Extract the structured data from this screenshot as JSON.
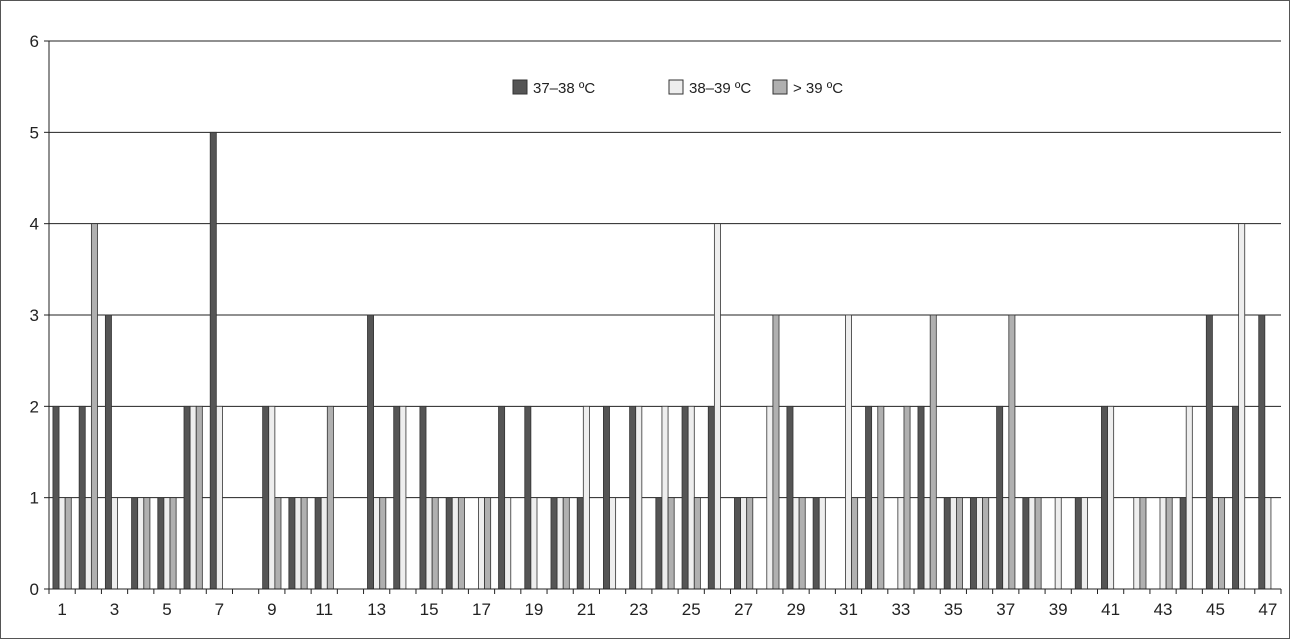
{
  "chart_data": {
    "type": "bar",
    "title": "",
    "xlabel": "",
    "ylabel": "",
    "ylim": [
      0,
      6
    ],
    "yticks": [
      0,
      1,
      2,
      3,
      4,
      5,
      6
    ],
    "grid": true,
    "legend_position": "top-center",
    "x_tick_labels": [
      "1",
      "3",
      "5",
      "7",
      "9",
      "11",
      "13",
      "15",
      "17",
      "19",
      "21",
      "23",
      "25",
      "27",
      "29",
      "31",
      "33",
      "35",
      "37",
      "39",
      "41",
      "43",
      "45",
      "47"
    ],
    "categories": [
      "1",
      "2",
      "3",
      "4",
      "5",
      "6",
      "7",
      "8",
      "9",
      "10",
      "11",
      "12",
      "13",
      "14",
      "15",
      "16",
      "17",
      "18",
      "19",
      "20",
      "21",
      "22",
      "23",
      "24",
      "25",
      "26",
      "27",
      "28",
      "29",
      "30",
      "31",
      "32",
      "33",
      "34",
      "35",
      "36",
      "37",
      "38",
      "39",
      "40",
      "41",
      "42",
      "43",
      "44",
      "45",
      "46",
      "47"
    ],
    "series": [
      {
        "name": "37–38 ºC",
        "color": "#555555",
        "values": [
          2,
          2,
          3,
          1,
          1,
          2,
          5,
          0,
          2,
          1,
          1,
          0,
          3,
          2,
          2,
          1,
          0,
          2,
          2,
          1,
          1,
          2,
          2,
          1,
          2,
          2,
          1,
          0,
          2,
          1,
          0,
          2,
          0,
          2,
          1,
          1,
          2,
          1,
          0,
          1,
          2,
          0,
          0,
          1,
          3,
          2,
          3
        ]
      },
      {
        "name": "38–39 ºC",
        "color": "#eeeeee",
        "values": [
          1,
          1,
          1,
          1,
          1,
          2,
          2,
          0,
          2,
          1,
          1,
          0,
          1,
          2,
          1,
          1,
          1,
          1,
          1,
          1,
          2,
          1,
          2,
          2,
          2,
          4,
          1,
          2,
          1,
          1,
          3,
          1,
          1,
          1,
          1,
          1,
          1,
          1,
          1,
          1,
          2,
          1,
          1,
          2,
          1,
          4,
          1
        ]
      },
      {
        "name": "> 39 ºC",
        "color": "#b0b0b0",
        "values": [
          1,
          4,
          0,
          1,
          1,
          2,
          0,
          0,
          1,
          1,
          2,
          0,
          1,
          0,
          1,
          1,
          1,
          0,
          0,
          1,
          0,
          0,
          0,
          1,
          1,
          0,
          1,
          3,
          1,
          0,
          1,
          2,
          2,
          3,
          1,
          1,
          3,
          1,
          0,
          0,
          0,
          1,
          1,
          0,
          1,
          0,
          0
        ]
      }
    ]
  }
}
